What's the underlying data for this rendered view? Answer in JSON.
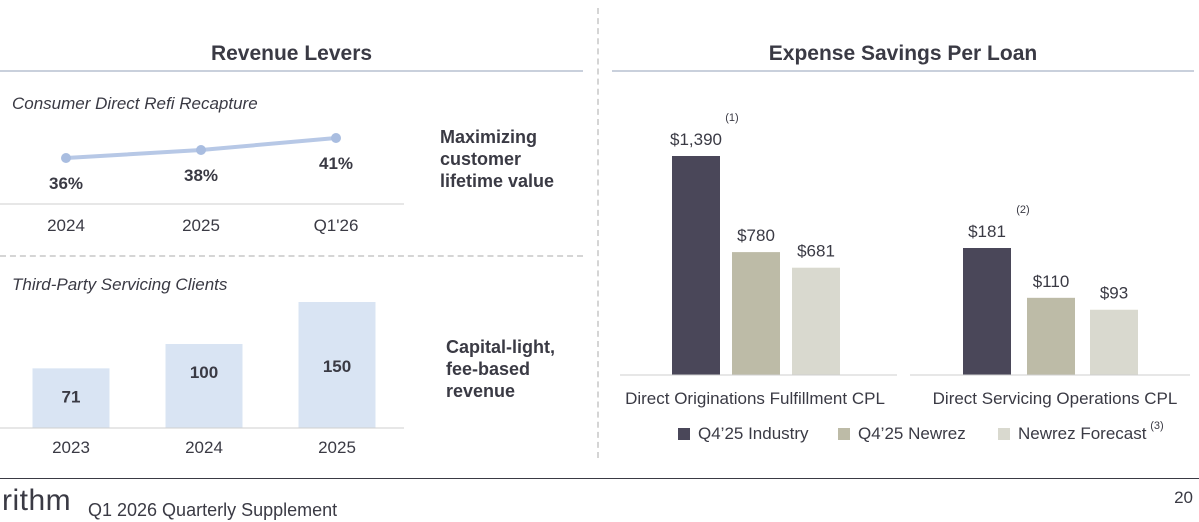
{
  "left_panel": {
    "title": "Revenue Levers",
    "recapture": {
      "subtitle": "Consumer Direct Refi Recapture",
      "tagline": [
        "Maximizing",
        "customer",
        "lifetime value"
      ]
    },
    "servicing": {
      "subtitle": "Third-Party Servicing Clients",
      "tagline": [
        "Capital-light,",
        "fee-based",
        "revenue"
      ]
    }
  },
  "right_panel": {
    "title": "Expense Savings Per Loan",
    "legend": [
      {
        "label": "Q4’25 Industry",
        "color": "#4a4759"
      },
      {
        "label": "Q4’25 Newrez",
        "color": "#bdbba7"
      },
      {
        "label": "Newrez Forecast",
        "color": "#d9d9cf",
        "note": "(3)"
      }
    ]
  },
  "footer": {
    "brand": "rithm",
    "text": "Q1 2026 Quarterly Supplement",
    "page": "20"
  },
  "chart_data": [
    {
      "type": "line",
      "title": "Consumer Direct Refi Recapture",
      "categories": [
        "2024",
        "2025",
        "Q1'26"
      ],
      "values": [
        36,
        38,
        41
      ],
      "value_labels": [
        "36%",
        "38%",
        "41%"
      ],
      "color": "#b7c8e6"
    },
    {
      "type": "bar",
      "title": "Third-Party Servicing Clients",
      "categories": [
        "2023",
        "2024",
        "2025"
      ],
      "values": [
        71,
        100,
        150
      ],
      "value_labels": [
        "71",
        "100",
        "150"
      ],
      "color": "#d9e4f3"
    },
    {
      "type": "bar",
      "title": "Expense Savings Per Loan",
      "categories": [
        "Direct Originations Fulfillment CPL",
        "Direct Servicing Operations CPL"
      ],
      "series": [
        {
          "name": "Q4’25 Industry",
          "values": [
            1390,
            181
          ],
          "labels": [
            "$1,390",
            "$181"
          ],
          "notes": [
            "(1)",
            "(2)"
          ],
          "color": "#4a4759"
        },
        {
          "name": "Q4’25 Newrez",
          "values": [
            780,
            110
          ],
          "labels": [
            "$780",
            "$110"
          ],
          "color": "#bdbba7"
        },
        {
          "name": "Newrez Forecast",
          "values": [
            681,
            93
          ],
          "labels": [
            "$681",
            "$93"
          ],
          "color": "#d9d9cf"
        }
      ]
    }
  ]
}
